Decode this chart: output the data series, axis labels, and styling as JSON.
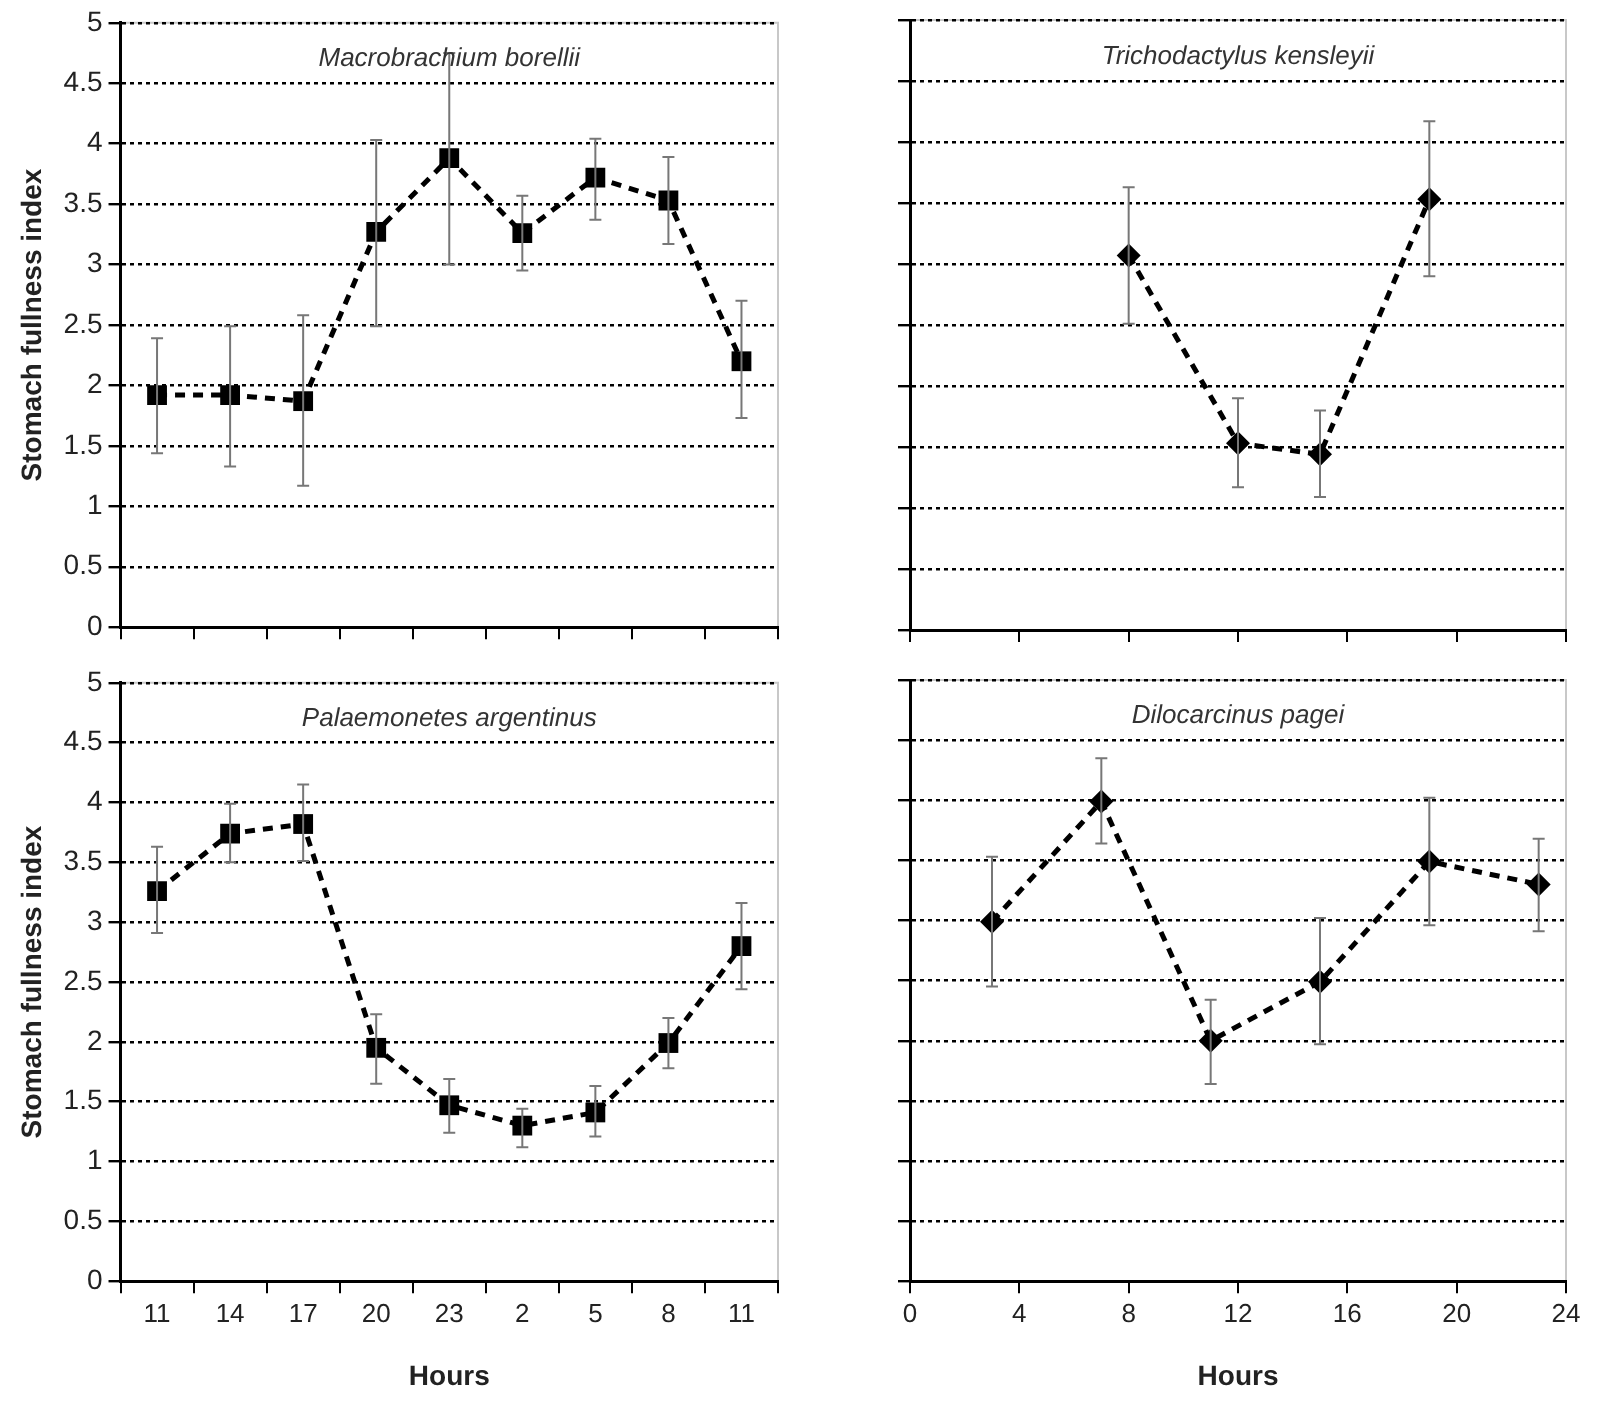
{
  "chart_data": [
    {
      "type": "line",
      "title": "Macrobrachium borellii",
      "ylabel": "Stomach fullness index",
      "categories": [
        "11",
        "14",
        "17",
        "20",
        "23",
        "2",
        "5",
        "8",
        "11"
      ],
      "ylim": [
        0,
        5
      ],
      "yticks": [
        0,
        0.5,
        1,
        1.5,
        2,
        2.5,
        3,
        3.5,
        4,
        4.5,
        5
      ],
      "grid": "y",
      "marker": "square",
      "line_style": "dashed",
      "tick_labels": "y",
      "legend": false,
      "series": [
        {
          "color": "#000000",
          "values": [
            1.92,
            1.92,
            1.87,
            3.27,
            3.88,
            3.26,
            3.72,
            3.53,
            2.2
          ],
          "errors": [
            [
              1.44,
              2.39
            ],
            [
              1.33,
              2.49
            ],
            [
              1.17,
              2.58
            ],
            [
              2.49,
              4.03
            ],
            [
              3.0,
              4.75
            ],
            [
              2.95,
              3.57
            ],
            [
              3.37,
              4.04
            ],
            [
              3.17,
              3.89
            ],
            [
              1.73,
              2.7
            ]
          ]
        }
      ]
    },
    {
      "type": "line",
      "title": "Trichodactylus kensleyii",
      "x": [
        8,
        12,
        15,
        19
      ],
      "xlim": [
        0,
        24
      ],
      "xticks": [
        0,
        4,
        8,
        12,
        16,
        20,
        24
      ],
      "ylim": [
        0,
        5
      ],
      "yticks": [
        0,
        0.5,
        1,
        1.5,
        2,
        2.5,
        3,
        3.5,
        4,
        4.5,
        5
      ],
      "grid": "y",
      "marker": "diamond",
      "line_style": "dashed",
      "tick_labels": false,
      "legend": false,
      "series": [
        {
          "color": "#000000",
          "values": [
            3.07,
            1.53,
            1.44,
            3.53
          ],
          "errors": [
            [
              2.51,
              3.63
            ],
            [
              1.17,
              1.9
            ],
            [
              1.09,
              1.8
            ],
            [
              2.9,
              4.17
            ]
          ]
        }
      ]
    },
    {
      "type": "line",
      "title": "Palaemonetes argentinus",
      "ylabel": "Stomach fullness index",
      "xlabel": "Hours",
      "categories": [
        "11",
        "14",
        "17",
        "20",
        "23",
        "2",
        "5",
        "8",
        "11"
      ],
      "ylim": [
        0,
        5
      ],
      "yticks": [
        0,
        0.5,
        1,
        1.5,
        2,
        2.5,
        3,
        3.5,
        4,
        4.5,
        5
      ],
      "grid": "y",
      "marker": "square",
      "line_style": "dashed",
      "legend": false,
      "series": [
        {
          "color": "#000000",
          "values": [
            3.26,
            3.74,
            3.82,
            1.95,
            1.47,
            1.3,
            1.41,
            1.99,
            2.8
          ],
          "errors": [
            [
              2.91,
              3.63
            ],
            [
              3.5,
              3.99
            ],
            [
              3.51,
              4.15
            ],
            [
              1.65,
              2.23
            ],
            [
              1.24,
              1.69
            ],
            [
              1.12,
              1.44
            ],
            [
              1.21,
              1.63
            ],
            [
              1.78,
              2.2
            ],
            [
              2.44,
              3.16
            ]
          ]
        }
      ]
    },
    {
      "type": "line",
      "title": "Dilocarcinus pagei",
      "xlabel": "Hours",
      "x": [
        3,
        7,
        11,
        15,
        19,
        23
      ],
      "xlim": [
        0,
        24
      ],
      "xticks": [
        0,
        4,
        8,
        12,
        16,
        20,
        24
      ],
      "ylim": [
        0,
        5
      ],
      "yticks": [
        0,
        0.5,
        1,
        1.5,
        2,
        2.5,
        3,
        3.5,
        4,
        4.5,
        5
      ],
      "grid": "y",
      "marker": "diamond",
      "line_style": "dashed",
      "tick_labels": "x",
      "legend": false,
      "series": [
        {
          "color": "#000000",
          "values": [
            2.99,
            3.99,
            2.0,
            2.49,
            3.49,
            3.3
          ],
          "errors": [
            [
              2.45,
              3.53
            ],
            [
              3.64,
              4.35
            ],
            [
              1.64,
              2.34
            ],
            [
              1.97,
              3.02
            ],
            [
              2.96,
              4.02
            ],
            [
              2.91,
              3.68
            ]
          ]
        }
      ]
    }
  ]
}
